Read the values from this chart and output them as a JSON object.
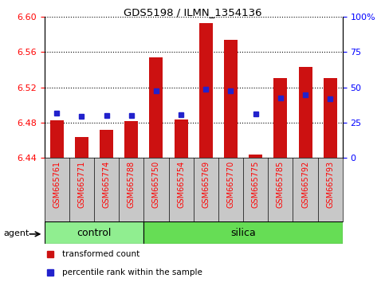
{
  "title": "GDS5198 / ILMN_1354136",
  "samples": [
    "GSM665761",
    "GSM665771",
    "GSM665774",
    "GSM665788",
    "GSM665750",
    "GSM665754",
    "GSM665769",
    "GSM665770",
    "GSM665775",
    "GSM665785",
    "GSM665792",
    "GSM665793"
  ],
  "groups": [
    "control",
    "control",
    "control",
    "control",
    "silica",
    "silica",
    "silica",
    "silica",
    "silica",
    "silica",
    "silica",
    "silica"
  ],
  "transformed_count": [
    6.483,
    6.464,
    6.472,
    6.482,
    6.554,
    6.484,
    6.593,
    6.574,
    6.444,
    6.531,
    6.543,
    6.531
  ],
  "percentile_rank": [
    6.491,
    6.487,
    6.488,
    6.488,
    6.516,
    6.489,
    6.518,
    6.516,
    6.49,
    6.508,
    6.512,
    6.507
  ],
  "ymin": 6.44,
  "ymax": 6.6,
  "yticks": [
    6.44,
    6.48,
    6.52,
    6.56,
    6.6
  ],
  "right_yticks": [
    0,
    25,
    50,
    75,
    100
  ],
  "bar_color": "#cc1111",
  "dot_color": "#2222cc",
  "control_color": "#90ee90",
  "silica_color": "#66dd55",
  "bg_color": "#c8c8c8",
  "n_control": 4,
  "n_silica": 8,
  "bar_width": 0.55,
  "agent_label": "agent",
  "control_label": "control",
  "silica_label": "silica",
  "legend_red": "transformed count",
  "legend_blue": "percentile rank within the sample"
}
